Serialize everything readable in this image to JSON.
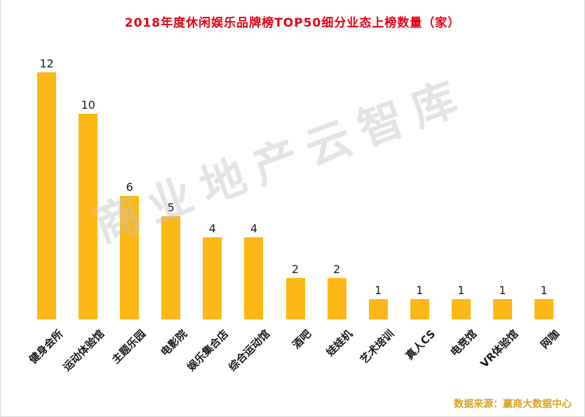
{
  "page": {
    "title": "2018年度休闲娱乐品牌榜TOP50细分业态上榜数量（家）",
    "watermark": "商业地产云智库",
    "source": "数据来源：赢商大数据中心"
  },
  "colors": {
    "bar": "#FDB817",
    "title": "#E60012",
    "watermark": "#C4C4C4",
    "source": "#D9A428"
  },
  "chart_data": {
    "type": "bar",
    "title": "2018年度休闲娱乐品牌榜TOP50细分业态上榜数量（家）",
    "categories": [
      "健身会所",
      "运动体验馆",
      "主题乐园",
      "电影院",
      "娱乐集合店",
      "综合运动馆",
      "酒吧",
      "娃娃机",
      "艺术培训",
      "真人CS",
      "电竞馆",
      "VR体验馆",
      "网咖"
    ],
    "values": [
      12,
      10,
      6,
      5,
      4,
      4,
      2,
      2,
      1,
      1,
      1,
      1,
      1
    ],
    "xlabel": "",
    "ylabel": "",
    "ylim": [
      0,
      12
    ],
    "grid": false,
    "legend": "none",
    "data_labels": true,
    "bar_color": "#FDB817",
    "source_note": "数据来源：赢商大数据中心"
  }
}
